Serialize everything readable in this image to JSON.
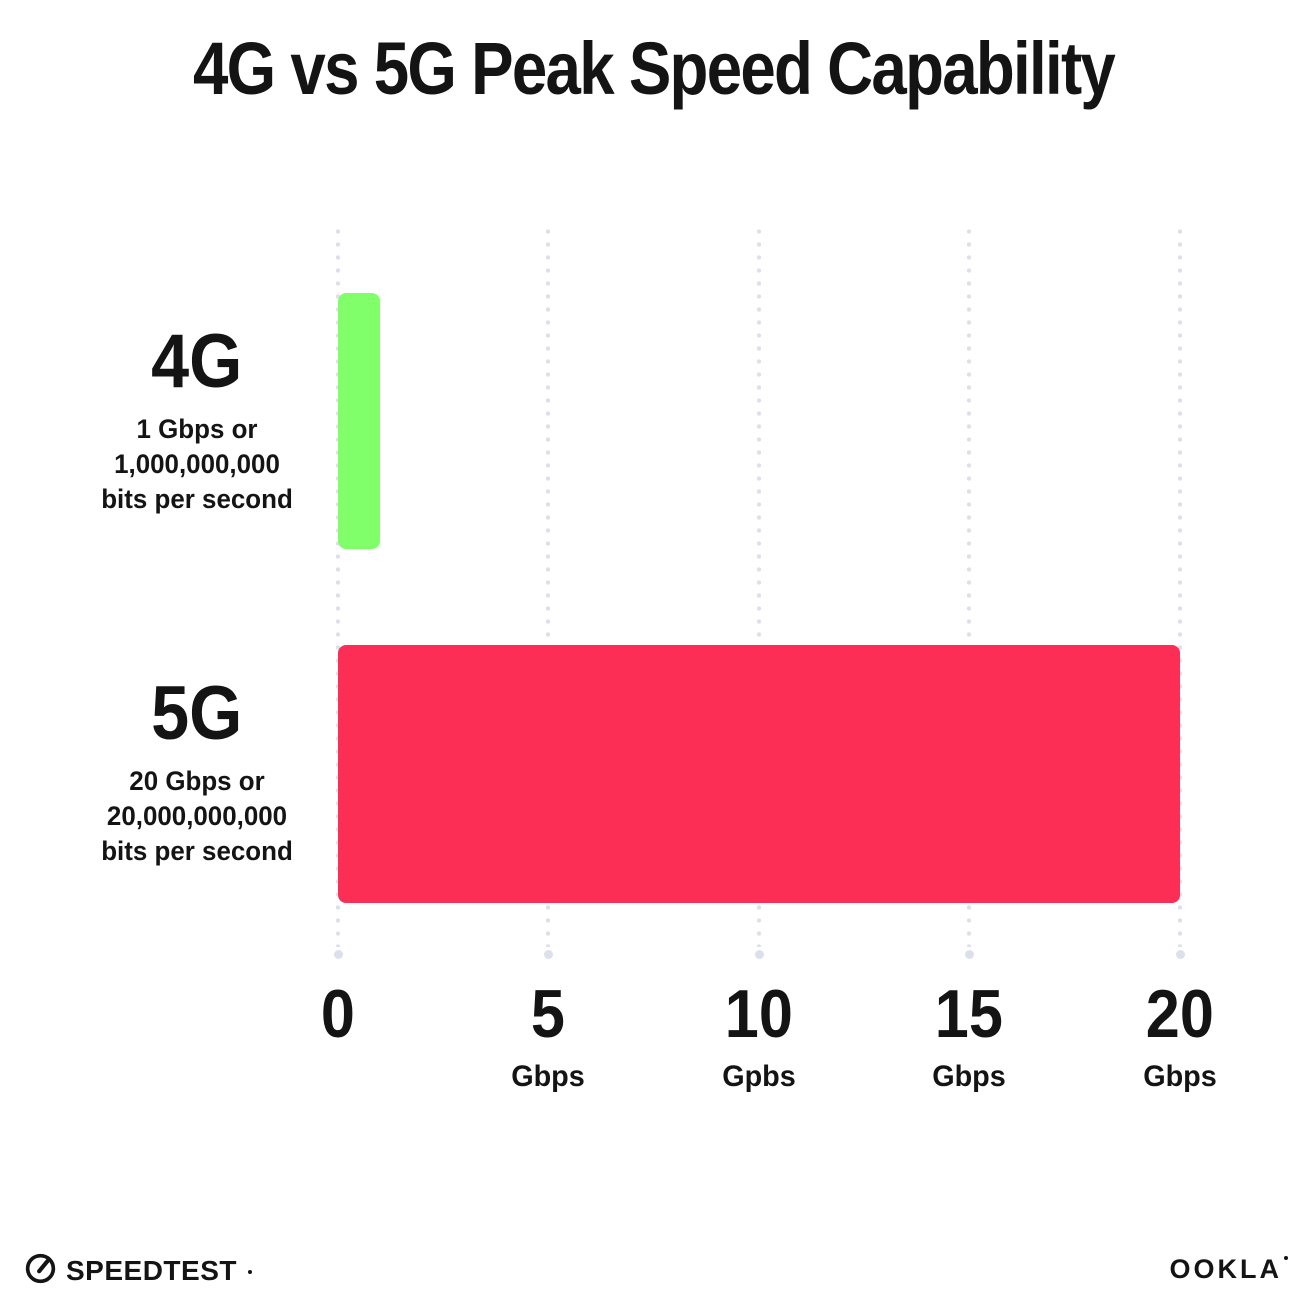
{
  "title": "4G vs 5G Peak Speed Capability",
  "chart_data": {
    "type": "bar",
    "orientation": "horizontal",
    "title": "4G vs 5G Peak Speed Capability",
    "categories": [
      "4G",
      "5G"
    ],
    "values": [
      1,
      20
    ],
    "value_unit": "Gbps",
    "bar_colors": [
      "#81FF6B",
      "#FD2E56"
    ],
    "xlim": [
      0,
      20
    ],
    "x_ticks": [
      0,
      5,
      10,
      15,
      20
    ],
    "x_tick_units": [
      "",
      "Gbps",
      "Gpbs",
      "Gbps",
      "Gbps"
    ],
    "grid": "dotted vertical gridlines",
    "annotations": [
      "4G: 1 Gbps or 1,000,000,000 bits per second",
      "5G: 20 Gbps or 20,000,000,000 bits per second"
    ],
    "legend": "none"
  },
  "rows": [
    {
      "label": "4G",
      "sub1": "1 Gbps or",
      "sub2": "1,000,000,000",
      "sub3": "bits per second"
    },
    {
      "label": "5G",
      "sub1": "20 Gbps or",
      "sub2": "20,000,000,000",
      "sub3": "bits per second"
    }
  ],
  "x_axis": {
    "ticks": [
      {
        "value": "0",
        "unit": ""
      },
      {
        "value": "5",
        "unit": "Gbps"
      },
      {
        "value": "10",
        "unit": "Gpbs"
      },
      {
        "value": "15",
        "unit": "Gbps"
      },
      {
        "value": "20",
        "unit": "Gbps"
      }
    ]
  },
  "footer": {
    "speedtest_label": "SPEEDTEST",
    "ookla_label": "OOKLA"
  },
  "colors": {
    "background": "#ffffff",
    "text": "#141414",
    "bar_4g": "#81FF6B",
    "bar_5g": "#FD2E56",
    "gridline_dot": "#dfdfeb"
  }
}
